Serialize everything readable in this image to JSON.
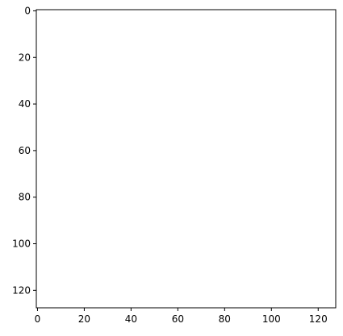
{
  "chart_data": {
    "type": "heatmap",
    "title": "",
    "xlabel": "",
    "ylabel": "",
    "xlim": [
      -0.5,
      127.5
    ],
    "ylim": [
      127.5,
      -0.5
    ],
    "y_axis_inverted": true,
    "grid": false,
    "legend": "none",
    "x_ticks": [
      0,
      20,
      40,
      60,
      80,
      100,
      120
    ],
    "y_ticks": [
      0,
      20,
      40,
      60,
      80,
      100,
      120
    ],
    "image_size": [
      128,
      128
    ],
    "palette": [
      "#87573a",
      "#92281e",
      "#cf6a57",
      "#93b35c",
      "#bed57a",
      "#d6a47b"
    ]
  }
}
